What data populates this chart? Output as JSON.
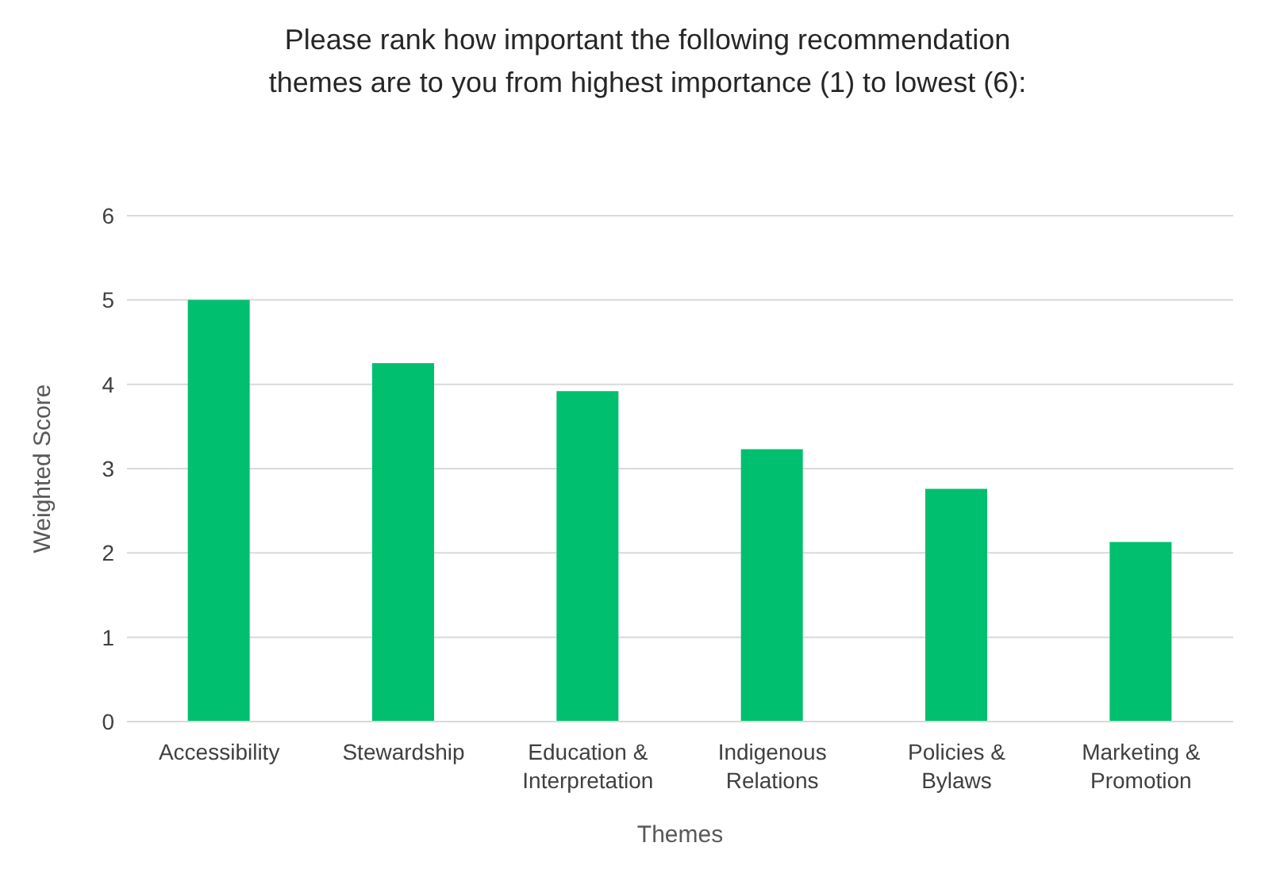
{
  "chart_data": {
    "type": "bar",
    "title": "Please rank how important the following recommendation themes are to you from highest importance (1) to lowest (6):",
    "xlabel": "Themes",
    "ylabel": "Weighted Score",
    "categories": [
      "Accessibility",
      "Stewardship",
      "Education & Interpretation",
      "Indigenous Relations",
      "Policies & Bylaws",
      "Marketing & Promotion"
    ],
    "values": [
      5.0,
      4.25,
      3.92,
      3.23,
      2.76,
      2.13
    ],
    "color": "#00bf6f",
    "ylim": [
      0,
      6
    ],
    "yticks": [
      0,
      1,
      2,
      3,
      4,
      5,
      6
    ],
    "grid": "y"
  }
}
